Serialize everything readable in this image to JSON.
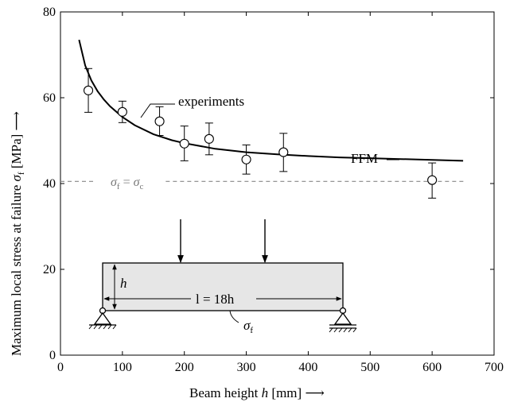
{
  "chart_data": {
    "type": "scatter",
    "xlabel": "Beam height h [mm]",
    "ylabel": "Maximum local stress at failure σf [MPa]",
    "xlim": [
      0,
      700
    ],
    "ylim": [
      0,
      80
    ],
    "xticks": [
      0,
      100,
      200,
      300,
      400,
      500,
      600,
      700
    ],
    "yticks": [
      0,
      20,
      40,
      60,
      80
    ],
    "grid": false,
    "series": [
      {
        "name": "experiments",
        "kind": "points-with-error-bars",
        "x": [
          45,
          100,
          160,
          200,
          240,
          300,
          360,
          600
        ],
        "y": [
          61.7,
          56.7,
          54.5,
          49.3,
          50.4,
          45.6,
          47.3,
          40.8
        ],
        "y_low": [
          56.6,
          54.2,
          51.2,
          45.3,
          46.7,
          42.2,
          42.8,
          36.6
        ],
        "y_high": [
          66.8,
          59.2,
          57.9,
          53.4,
          54.1,
          49.0,
          51.7,
          44.8
        ]
      },
      {
        "name": "FFM",
        "kind": "line",
        "x": [
          30,
          40,
          50,
          60,
          70,
          80,
          100,
          120,
          150,
          180,
          200,
          250,
          300,
          350,
          400,
          450,
          500,
          550,
          600,
          650
        ],
        "y": [
          73.5,
          67.5,
          64.0,
          61.5,
          59.6,
          58.0,
          55.5,
          53.6,
          51.5,
          50.1,
          49.4,
          48.1,
          47.3,
          46.8,
          46.4,
          46.1,
          45.9,
          45.7,
          45.5,
          45.3
        ]
      }
    ],
    "reference_line": {
      "y": 40.5,
      "style": "dashed",
      "label": "σf = σc"
    },
    "annotations": {
      "experiments": "experiments",
      "ffm": "FFM",
      "sigma_f": "σf"
    },
    "arrow_symbol": "⟶",
    "inset": {
      "description_label": "l = 18h",
      "height_label": "h"
    }
  }
}
